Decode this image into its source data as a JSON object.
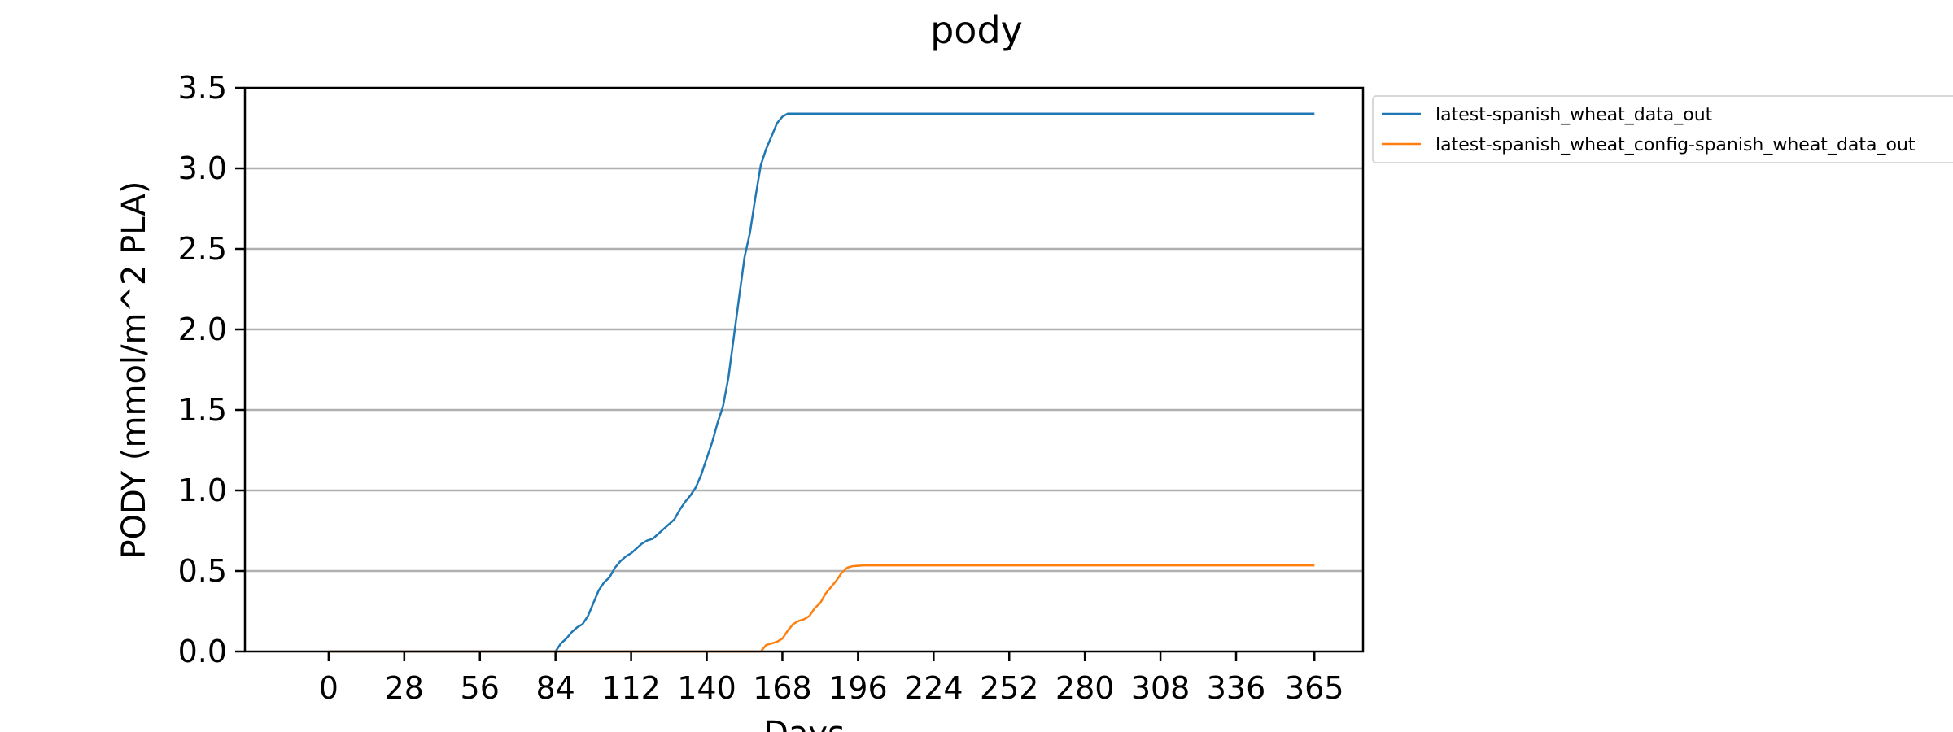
{
  "chart_data": {
    "type": "line",
    "title": "pody",
    "xlabel": "Days",
    "ylabel": "PODY (mmol/m^2 PLA)",
    "xlim": [
      -31,
      383
    ],
    "ylim": [
      0,
      3.5
    ],
    "xticks": [
      0,
      28,
      56,
      84,
      112,
      140,
      168,
      196,
      224,
      252,
      280,
      308,
      336,
      365
    ],
    "yticks": [
      0.0,
      0.5,
      1.0,
      1.5,
      2.0,
      2.5,
      3.0,
      3.5
    ],
    "ytick_labels": [
      "0.0",
      "0.5",
      "1.0",
      "1.5",
      "2.0",
      "2.5",
      "3.0",
      "3.5"
    ],
    "grid": "y-major",
    "legend_position": "outside-top-right",
    "series": [
      {
        "name": "latest-spanish_wheat_data_out",
        "color": "#1f77b4",
        "points": [
          [
            0,
            0
          ],
          [
            84,
            0
          ],
          [
            86,
            0.05
          ],
          [
            88,
            0.08
          ],
          [
            90,
            0.12
          ],
          [
            92,
            0.15
          ],
          [
            94,
            0.17
          ],
          [
            96,
            0.22
          ],
          [
            98,
            0.3
          ],
          [
            100,
            0.38
          ],
          [
            102,
            0.43
          ],
          [
            104,
            0.46
          ],
          [
            106,
            0.52
          ],
          [
            108,
            0.56
          ],
          [
            110,
            0.59
          ],
          [
            112,
            0.61
          ],
          [
            114,
            0.64
          ],
          [
            116,
            0.67
          ],
          [
            118,
            0.69
          ],
          [
            120,
            0.7
          ],
          [
            122,
            0.73
          ],
          [
            124,
            0.76
          ],
          [
            126,
            0.79
          ],
          [
            128,
            0.82
          ],
          [
            130,
            0.88
          ],
          [
            132,
            0.93
          ],
          [
            134,
            0.97
          ],
          [
            136,
            1.02
          ],
          [
            138,
            1.1
          ],
          [
            140,
            1.2
          ],
          [
            142,
            1.3
          ],
          [
            144,
            1.42
          ],
          [
            146,
            1.52
          ],
          [
            148,
            1.7
          ],
          [
            150,
            1.95
          ],
          [
            152,
            2.2
          ],
          [
            154,
            2.45
          ],
          [
            156,
            2.6
          ],
          [
            158,
            2.82
          ],
          [
            160,
            3.02
          ],
          [
            162,
            3.12
          ],
          [
            164,
            3.2
          ],
          [
            166,
            3.28
          ],
          [
            168,
            3.32
          ],
          [
            170,
            3.34
          ],
          [
            365,
            3.34
          ]
        ]
      },
      {
        "name": "latest-spanish_wheat_config-spanish_wheat_data_out",
        "color": "#ff7f0e",
        "points": [
          [
            0,
            0
          ],
          [
            160,
            0
          ],
          [
            162,
            0.04
          ],
          [
            164,
            0.05
          ],
          [
            166,
            0.06
          ],
          [
            168,
            0.08
          ],
          [
            170,
            0.13
          ],
          [
            172,
            0.17
          ],
          [
            174,
            0.19
          ],
          [
            176,
            0.2
          ],
          [
            178,
            0.22
          ],
          [
            180,
            0.27
          ],
          [
            182,
            0.3
          ],
          [
            184,
            0.36
          ],
          [
            186,
            0.4
          ],
          [
            188,
            0.44
          ],
          [
            190,
            0.49
          ],
          [
            192,
            0.52
          ],
          [
            194,
            0.53
          ],
          [
            198,
            0.535
          ],
          [
            365,
            0.535
          ]
        ]
      }
    ]
  }
}
